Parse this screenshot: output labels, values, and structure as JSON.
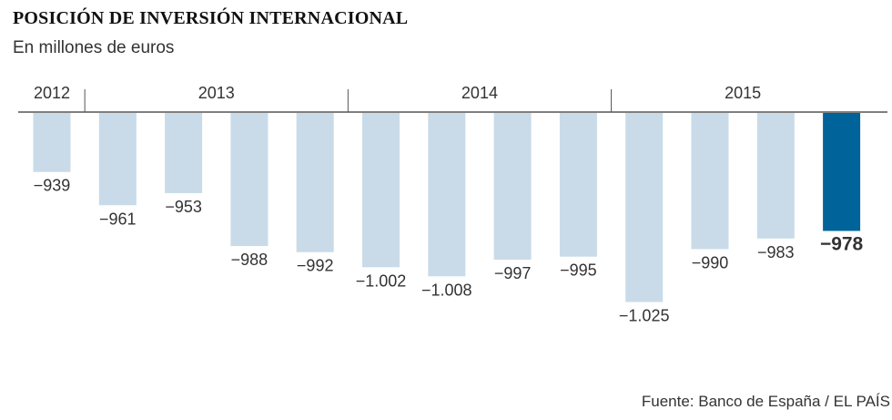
{
  "header": {
    "title": "POSICIÓN DE INVERSIÓN INTERNACIONAL",
    "subtitle": "En millones de euros"
  },
  "footer": {
    "source": "Fuente: Banco de España / EL PAÍS"
  },
  "colors": {
    "bar": "#c9dbe8",
    "highlight": "#00639a",
    "axis": "#555555",
    "label": "#333333"
  },
  "chart_data": {
    "type": "bar",
    "title": "POSICIÓN DE INVERSIÓN INTERNACIONAL",
    "subtitle": "En millones de euros",
    "xlabel": "",
    "ylabel": "",
    "year_groups": [
      {
        "label": "2012",
        "count": 1
      },
      {
        "label": "2013",
        "count": 4
      },
      {
        "label": "2014",
        "count": 4
      },
      {
        "label": "2015",
        "count": 4
      }
    ],
    "values": [
      -939,
      -961,
      -953,
      -988,
      -992,
      -1002,
      -1008,
      -997,
      -995,
      -1025,
      -990,
      -983,
      -978
    ],
    "value_labels": [
      "−939",
      "−961",
      "−953",
      "−988",
      "−992",
      "−1.002",
      "−1.008",
      "−997",
      "−995",
      "−1.025",
      "−990",
      "−983",
      "−978"
    ],
    "highlight_index": 12,
    "baseline": -900,
    "ylim": [
      -1035,
      -900
    ],
    "grid": false,
    "legend": "none"
  }
}
